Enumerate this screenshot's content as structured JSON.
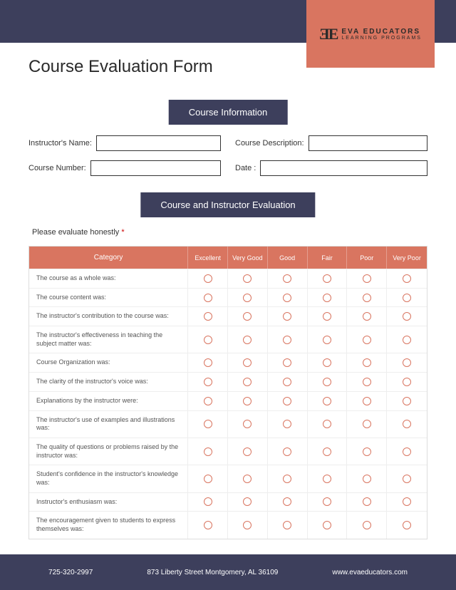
{
  "title": "Course Evaluation Form",
  "logo": {
    "mark": "ƎE",
    "name": "EVA EDUCATORS",
    "sub": "LEARNING PROGRAMS"
  },
  "section1": "Course Information",
  "fields": {
    "instructor": "Instructor's Name:",
    "description": "Course Description:",
    "number": "Course Number:",
    "date": "Date :"
  },
  "section2": "Course and Instructor Evaluation",
  "instruction": "Please evaluate honestly",
  "required": "*",
  "columns": [
    "Category",
    "Excellent",
    "Very Good",
    "Good",
    "Fair",
    "Poor",
    "Very Poor"
  ],
  "rows": [
    "The course as a whole was:",
    "The course content was:",
    "The instructor's contribution to the course was:",
    "The instructor's effectiveness in teaching the subject matter was:",
    "Course Organization was:",
    "The clarity of the instructor's voice was:",
    "Explanations by the instructor were:",
    "The instructor's use of examples and illustrations was:",
    "The quality of questions or problems raised by the instructor was:",
    "Student's confidence in the instructor's knowledge was:",
    "Instructor's enthusiasm was:",
    "The encouragement given to students to express themselves was:"
  ],
  "footer": {
    "phone": "725-320-2997",
    "address": "873 Liberty Street Montgomery, AL 36109",
    "website": "www.evaeducators.com"
  },
  "colors": {
    "navy": "#3d3f5c",
    "coral": "#d97560",
    "text": "#333333",
    "border": "#eeeeee"
  }
}
